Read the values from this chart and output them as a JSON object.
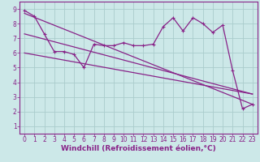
{
  "xlabel": "Windchill (Refroidissement éolien,°C)",
  "bg_color": "#cce8e8",
  "line_color": "#882288",
  "grid_color": "#aacccc",
  "xlim": [
    -0.5,
    23.5
  ],
  "ylim": [
    0.5,
    9.5
  ],
  "xticks": [
    0,
    1,
    2,
    3,
    4,
    5,
    6,
    7,
    8,
    9,
    10,
    11,
    12,
    13,
    14,
    15,
    16,
    17,
    18,
    19,
    20,
    21,
    22,
    23
  ],
  "yticks": [
    1,
    2,
    3,
    4,
    5,
    6,
    7,
    8,
    9
  ],
  "zigzag_x": [
    0,
    1,
    2,
    3,
    4,
    5,
    6,
    7,
    8,
    9,
    10,
    11,
    12,
    13,
    14,
    15,
    16,
    17,
    18,
    19,
    20,
    21,
    22,
    23
  ],
  "zigzag_y": [
    8.9,
    8.5,
    7.3,
    6.1,
    6.1,
    5.9,
    5.0,
    6.6,
    6.5,
    6.5,
    6.7,
    6.5,
    6.5,
    6.6,
    7.8,
    8.4,
    7.5,
    8.4,
    8.0,
    7.4,
    7.9,
    4.8,
    2.2,
    2.5
  ],
  "line1_x": [
    0,
    23
  ],
  "line1_y": [
    8.7,
    2.5
  ],
  "line2_x": [
    0,
    23
  ],
  "line2_y": [
    7.3,
    3.2
  ],
  "line3_x": [
    0,
    23
  ],
  "line3_y": [
    6.0,
    3.2
  ],
  "marker_size": 2.5,
  "font_size": 6.5
}
